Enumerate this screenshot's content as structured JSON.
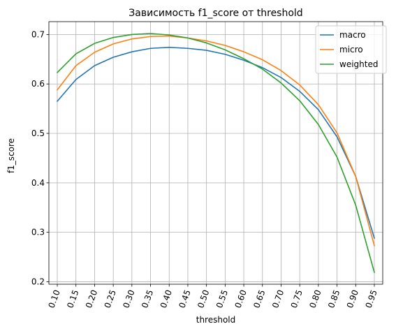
{
  "chart_data": {
    "type": "line",
    "title": "Зависимость f1_score от threshold",
    "xlabel": "threshold",
    "ylabel": "f1_score",
    "x": [
      0.1,
      0.15,
      0.2,
      0.25,
      0.3,
      0.35,
      0.4,
      0.45,
      0.5,
      0.55,
      0.6,
      0.65,
      0.7,
      0.75,
      0.8,
      0.85,
      0.9,
      0.95
    ],
    "x_tick_labels": [
      "0.10",
      "0.15",
      "0.20",
      "0.25",
      "0.30",
      "0.35",
      "0.40",
      "0.45",
      "0.50",
      "0.55",
      "0.60",
      "0.65",
      "0.70",
      "0.75",
      "0.80",
      "0.85",
      "0.90",
      "0.95"
    ],
    "y_ticks": [
      0.2,
      0.3,
      0.4,
      0.5,
      0.6,
      0.7
    ],
    "y_tick_labels": [
      "0.2",
      "0.3",
      "0.4",
      "0.5",
      "0.6",
      "0.7"
    ],
    "xlim": [
      0.0775,
      0.9725
    ],
    "ylim": [
      0.195,
      0.726
    ],
    "grid": true,
    "legend_position": "top-right",
    "series": [
      {
        "name": "macro",
        "color": "#1f77b4",
        "values": [
          0.565,
          0.609,
          0.637,
          0.654,
          0.665,
          0.672,
          0.674,
          0.672,
          0.668,
          0.66,
          0.648,
          0.633,
          0.613,
          0.585,
          0.548,
          0.493,
          0.413,
          0.288
        ]
      },
      {
        "name": "micro",
        "color": "#ff7f0e",
        "values": [
          0.588,
          0.637,
          0.664,
          0.681,
          0.691,
          0.696,
          0.697,
          0.693,
          0.687,
          0.678,
          0.665,
          0.649,
          0.627,
          0.598,
          0.558,
          0.501,
          0.413,
          0.273
        ]
      },
      {
        "name": "weighted",
        "color": "#2ca02c",
        "values": [
          0.623,
          0.661,
          0.682,
          0.694,
          0.7,
          0.702,
          0.699,
          0.693,
          0.683,
          0.669,
          0.651,
          0.63,
          0.602,
          0.566,
          0.518,
          0.452,
          0.355,
          0.219
        ]
      }
    ]
  }
}
